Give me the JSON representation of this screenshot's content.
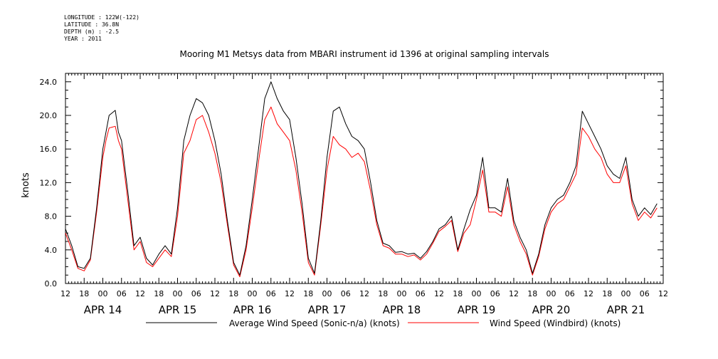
{
  "meta": {
    "longitude": "LONGITUDE : 122W(-122)",
    "latitude": "LATITUDE : 36.8N",
    "depth": "DEPTH (m) : -2.5",
    "year": "YEAR : 2011"
  },
  "chart_data": {
    "type": "line",
    "title": "Mooring M1 Metsys data from MBARI instrument id 1396 at original sampling intervals",
    "ylabel": "knots",
    "ylim": [
      0,
      25
    ],
    "yticks": [
      0.0,
      4.0,
      8.0,
      12.0,
      16.0,
      20.0,
      24.0
    ],
    "ytick_labels": [
      "0.0",
      "4.0",
      "8.0",
      "12.0",
      "16.0",
      "20.0",
      "24.0"
    ],
    "x_unit": "hours since APR 14 00:00",
    "xlim": [
      -12,
      180
    ],
    "hour_ticks": [
      -12,
      -6,
      0,
      6,
      12,
      18,
      24,
      30,
      36,
      42,
      48,
      54,
      60,
      66,
      72,
      78,
      84,
      90,
      96,
      102,
      108,
      114,
      120,
      126,
      132,
      138,
      144,
      150,
      156,
      162,
      168,
      174,
      180
    ],
    "hour_tick_labels": [
      "12",
      "18",
      "00",
      "06",
      "12",
      "18",
      "00",
      "06",
      "12",
      "18",
      "00",
      "06",
      "12",
      "18",
      "00",
      "06",
      "12",
      "18",
      "00",
      "06",
      "12",
      "18",
      "00",
      "06",
      "12",
      "18",
      "00",
      "06",
      "12",
      "18",
      "00",
      "06",
      "12"
    ],
    "date_labels": [
      {
        "x": 0,
        "label": "APR 14"
      },
      {
        "x": 24,
        "label": "APR 15"
      },
      {
        "x": 48,
        "label": "APR 16"
      },
      {
        "x": 72,
        "label": "APR 17"
      },
      {
        "x": 96,
        "label": "APR 18"
      },
      {
        "x": 120,
        "label": "APR 19"
      },
      {
        "x": 144,
        "label": "APR 20"
      },
      {
        "x": 168,
        "label": "APR 21"
      }
    ],
    "series": [
      {
        "name": "Average Wind Speed (Sonic-n/a) (knots)",
        "color": "#000000",
        "x": [
          -12,
          -10,
          -8,
          -6,
          -4,
          -2,
          0,
          1,
          2,
          3,
          4,
          5,
          6,
          7,
          8,
          10,
          12,
          14,
          16,
          18,
          20,
          22,
          24,
          26,
          28,
          30,
          32,
          34,
          36,
          38,
          40,
          42,
          44,
          46,
          48,
          50,
          52,
          54,
          56,
          58,
          60,
          62,
          64,
          66,
          68,
          70,
          72,
          74,
          76,
          78,
          80,
          82,
          84,
          86,
          88,
          90,
          92,
          94,
          96,
          98,
          100,
          102,
          104,
          106,
          108,
          110,
          112,
          114,
          116,
          118,
          120,
          122,
          124,
          126,
          128,
          130,
          132,
          134,
          136,
          138,
          140,
          142,
          144,
          146,
          148,
          150,
          152,
          154,
          156,
          158,
          160,
          162,
          164,
          166,
          168,
          170,
          172,
          174,
          176,
          178
        ],
        "y": [
          6.5,
          4.5,
          2.0,
          1.8,
          3.0,
          9.0,
          16.0,
          18.0,
          20.0,
          20.3,
          20.6,
          18.0,
          17.0,
          14.0,
          11.0,
          4.5,
          5.5,
          3.0,
          2.2,
          3.5,
          4.5,
          3.5,
          9.0,
          17.0,
          20.0,
          22.0,
          21.5,
          20.0,
          17.0,
          13.0,
          7.5,
          2.5,
          1.0,
          4.5,
          10.0,
          16.0,
          22.0,
          24.0,
          22.0,
          20.5,
          19.5,
          15.0,
          9.5,
          3.0,
          1.2,
          7.5,
          15.0,
          20.5,
          21.0,
          19.0,
          17.5,
          17.0,
          16.0,
          12.0,
          7.5,
          4.8,
          4.5,
          3.7,
          3.8,
          3.5,
          3.6,
          3.0,
          3.8,
          5.0,
          6.5,
          7.0,
          8.0,
          4.0,
          6.5,
          8.8,
          10.5,
          15.0,
          9.0,
          9.0,
          8.5,
          12.5,
          7.5,
          5.5,
          4.0,
          1.2,
          3.5,
          7.0,
          9.0,
          10.0,
          10.5,
          12.0,
          14.0,
          20.5,
          19.0,
          17.5,
          16.0,
          14.0,
          13.0,
          12.5,
          15.0,
          10.0,
          8.0,
          9.0,
          8.2,
          9.5
        ]
      },
      {
        "name": "Wind Speed (Windbird) (knots)",
        "color": "#ff0000",
        "x": [
          -12,
          -10,
          -8,
          -6,
          -4,
          -2,
          0,
          1,
          2,
          3,
          4,
          5,
          6,
          7,
          8,
          10,
          12,
          14,
          16,
          18,
          20,
          22,
          24,
          26,
          28,
          30,
          32,
          34,
          36,
          38,
          40,
          42,
          44,
          46,
          48,
          50,
          52,
          54,
          56,
          58,
          60,
          62,
          64,
          66,
          68,
          70,
          72,
          74,
          76,
          78,
          80,
          82,
          84,
          86,
          88,
          90,
          92,
          94,
          96,
          98,
          100,
          102,
          104,
          106,
          108,
          110,
          112,
          114,
          116,
          118,
          120,
          122,
          124,
          126,
          128,
          130,
          132,
          134,
          136,
          138,
          140,
          142,
          144,
          146,
          148,
          150,
          152,
          154,
          156,
          158,
          160,
          162,
          164,
          166,
          168,
          170,
          172,
          174,
          176,
          178
        ],
        "y": [
          6.0,
          4.0,
          1.8,
          1.5,
          2.8,
          8.5,
          15.0,
          17.0,
          18.5,
          18.6,
          18.7,
          17.0,
          16.0,
          13.0,
          10.0,
          4.0,
          5.0,
          2.5,
          2.0,
          3.0,
          4.0,
          3.2,
          8.0,
          15.5,
          17.0,
          19.5,
          20.0,
          18.0,
          15.5,
          12.0,
          7.0,
          2.2,
          0.8,
          4.0,
          9.0,
          14.5,
          19.5,
          21.0,
          19.0,
          18.0,
          17.0,
          13.5,
          8.5,
          2.5,
          1.0,
          7.0,
          13.5,
          17.5,
          16.5,
          16.0,
          15.0,
          15.5,
          14.5,
          11.0,
          7.0,
          4.5,
          4.2,
          3.5,
          3.5,
          3.2,
          3.4,
          2.8,
          3.5,
          4.8,
          6.2,
          6.8,
          7.5,
          3.8,
          6.0,
          7.0,
          10.0,
          13.5,
          8.5,
          8.5,
          8.0,
          11.5,
          7.0,
          5.0,
          3.5,
          1.0,
          3.2,
          6.5,
          8.5,
          9.5,
          10.0,
          11.5,
          13.0,
          18.5,
          17.5,
          16.0,
          15.0,
          13.0,
          12.0,
          12.0,
          14.0,
          9.5,
          7.5,
          8.5,
          7.8,
          9.0
        ]
      }
    ],
    "legend_position": "bottom"
  }
}
